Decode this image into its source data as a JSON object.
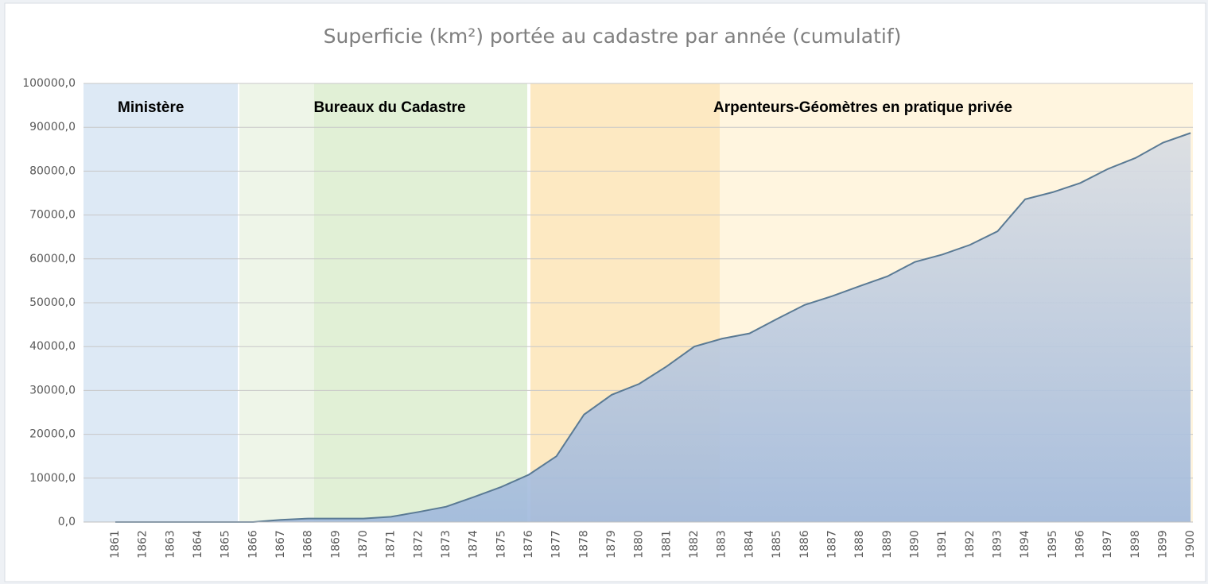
{
  "chart_data": {
    "type": "area",
    "title": "Superficie (km²) portée au cadastre par année (cumulatif)",
    "annotations": [
      "Ministère",
      "Bureaux du Cadastre",
      "Arpenteurs-Géomètres en pratique privée"
    ],
    "categories": [
      "1861",
      "1862",
      "1863",
      "1864",
      "1865",
      "1866",
      "1867",
      "1868",
      "1869",
      "1870",
      "1871",
      "1872",
      "1873",
      "1874",
      "1875",
      "1876",
      "1877",
      "1878",
      "1879",
      "1880",
      "1881",
      "1882",
      "1883",
      "1884",
      "1885",
      "1886",
      "1887",
      "1888",
      "1889",
      "1890",
      "1891",
      "1892",
      "1893",
      "1894",
      "1895",
      "1896",
      "1897",
      "1898",
      "1899",
      "1900"
    ],
    "values": [
      0,
      0,
      0,
      0,
      0,
      0,
      500,
      800,
      800,
      800,
      1200,
      2300,
      3500,
      5700,
      8000,
      10800,
      15000,
      24500,
      29000,
      31500,
      35500,
      40000,
      41800,
      43000,
      46300,
      49500,
      51500,
      53800,
      56000,
      59300,
      61000,
      63200,
      66300,
      73600,
      75200,
      77300,
      80500,
      83000,
      86500,
      88700
    ],
    "color": "#5a7a94",
    "ylim": [
      0,
      100000
    ],
    "yticks": [
      {
        "value": 0,
        "label": "0,0"
      },
      {
        "value": 10000,
        "label": "10000,0"
      },
      {
        "value": 20000,
        "label": "20000,0"
      },
      {
        "value": 30000,
        "label": "30000,0"
      },
      {
        "value": 40000,
        "label": "40000,0"
      },
      {
        "value": 50000,
        "label": "50000,0"
      },
      {
        "value": 60000,
        "label": "60000,0"
      },
      {
        "value": 70000,
        "label": "70000,0"
      },
      {
        "value": 80000,
        "label": "80000,0"
      },
      {
        "value": 90000,
        "label": "90000,0"
      },
      {
        "value": 100000,
        "label": "100000,0"
      }
    ],
    "grid": true
  }
}
